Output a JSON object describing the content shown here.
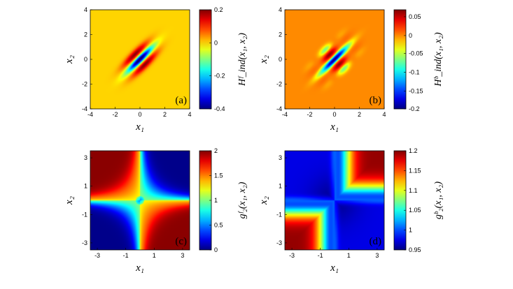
{
  "chart_data": [
    {
      "type": "heatmap",
      "panel_label": "(a)",
      "xlabel": "x₁",
      "ylabel": "x₂",
      "colorbar_label": "Hᶠ_ind(x₁, x₂)",
      "xlim": [
        -4,
        4
      ],
      "ylim": [
        -4,
        4
      ],
      "xticks": [
        "-4",
        "-2",
        "0",
        "2",
        "4"
      ],
      "yticks": [
        "4",
        "2",
        "0",
        "-2",
        "-4"
      ],
      "clim": [
        -0.4,
        0.2
      ],
      "colorbar_ticks": [
        "0.2",
        "0",
        "-0.2",
        "-0.4"
      ],
      "background_value": 0.0
    },
    {
      "type": "heatmap",
      "panel_label": "(b)",
      "xlabel": "x₁",
      "ylabel": "x₂",
      "colorbar_label": "Hᵇ_ind(x₁, x₂)",
      "xlim": [
        -4,
        4
      ],
      "ylim": [
        -4,
        4
      ],
      "xticks": [
        "-4",
        "-2",
        "0",
        "2",
        "4"
      ],
      "yticks": [
        "4",
        "2",
        "0",
        "-2",
        "-4"
      ],
      "clim": [
        -0.2,
        0.07
      ],
      "colorbar_ticks": [
        "0.05",
        "0",
        "-0.05",
        "-0.1",
        "-0.15",
        "-0.2"
      ],
      "background_value": 0.0
    },
    {
      "type": "heatmap",
      "panel_label": "(c)",
      "xlabel": "x₁",
      "ylabel": "x₂",
      "colorbar_label": "gᶠ₂(x₁, x₂)",
      "xlim": [
        -3.5,
        3.5
      ],
      "ylim": [
        -3.5,
        3.5
      ],
      "xticks": [
        "-3",
        "-1",
        "1",
        "3"
      ],
      "yticks": [
        "3",
        "1",
        "-1",
        "-3"
      ],
      "clim": [
        0,
        2
      ],
      "colorbar_ticks": [
        "2",
        "1.5",
        "1",
        "0.5",
        "0"
      ]
    },
    {
      "type": "heatmap",
      "panel_label": "(d)",
      "xlabel": "x₁",
      "ylabel": "x₂",
      "colorbar_label": "gᵇ₂(x₁, x₂)",
      "xlim": [
        -3.5,
        3.5
      ],
      "ylim": [
        -3.5,
        3.5
      ],
      "xticks": [
        "-3",
        "-1",
        "1",
        "3"
      ],
      "yticks": [
        "3",
        "1",
        "-1",
        "-3"
      ],
      "clim": [
        0.95,
        1.2
      ],
      "colorbar_ticks": [
        "1.2",
        "1.15",
        "1.1",
        "1.05",
        "1",
        "0.95"
      ]
    }
  ]
}
